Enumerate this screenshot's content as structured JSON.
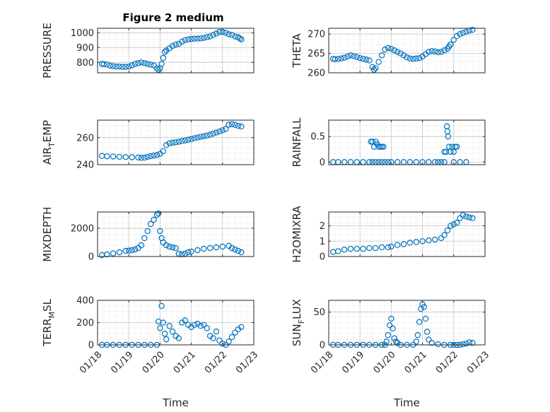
{
  "figure": {
    "title": "Figure 2 medium",
    "marker_color": "#0072BD",
    "date_ticks": [
      "01/18",
      "01/19",
      "01/20",
      "01/21",
      "01/22",
      "01/23"
    ]
  },
  "chart_data": [
    {
      "type": "scatter",
      "ylabel": "PRESSURE",
      "ylim": [
        730,
        1030
      ],
      "yticks": [
        "800",
        "900",
        "1000"
      ],
      "ytick_values": [
        800,
        900,
        1000
      ],
      "xlim": [
        "01/18",
        "01/23"
      ],
      "x": [
        0.14,
        0.2,
        0.3,
        0.4,
        0.5,
        0.6,
        0.7,
        0.8,
        0.9,
        1.0,
        1.1,
        1.2,
        1.3,
        1.4,
        1.5,
        1.6,
        1.7,
        1.8,
        1.9,
        1.95,
        2.0,
        2.05,
        2.1,
        2.15,
        2.2,
        2.3,
        2.4,
        2.5,
        2.6,
        2.7,
        2.8,
        2.9,
        3.0,
        3.1,
        3.2,
        3.3,
        3.4,
        3.5,
        3.6,
        3.7,
        3.8,
        3.9,
        4.0,
        4.1,
        4.2,
        4.3,
        4.4,
        4.5,
        4.55,
        4.6
      ],
      "y": [
        790,
        788,
        785,
        778,
        775,
        772,
        772,
        770,
        770,
        772,
        780,
        790,
        795,
        800,
        795,
        790,
        785,
        780,
        760,
        750,
        760,
        790,
        830,
        870,
        880,
        895,
        910,
        920,
        925,
        940,
        950,
        955,
        958,
        960,
        960,
        962,
        965,
        970,
        975,
        985,
        995,
        1005,
        1005,
        1000,
        990,
        985,
        975,
        970,
        962,
        955
      ]
    },
    {
      "type": "scatter",
      "ylabel": "THETA",
      "ylim": [
        260,
        271.5
      ],
      "yticks": [
        "260",
        "265",
        "270"
      ],
      "ytick_values": [
        260,
        265,
        270
      ],
      "xlim": [
        "01/18",
        "01/23"
      ],
      "x": [
        0.14,
        0.2,
        0.3,
        0.4,
        0.5,
        0.6,
        0.7,
        0.8,
        0.9,
        1.0,
        1.1,
        1.2,
        1.3,
        1.4,
        1.45,
        1.5,
        1.6,
        1.7,
        1.8,
        1.9,
        2.0,
        2.1,
        2.2,
        2.3,
        2.4,
        2.5,
        2.6,
        2.7,
        2.8,
        2.9,
        3.0,
        3.1,
        3.2,
        3.3,
        3.4,
        3.5,
        3.6,
        3.7,
        3.8,
        3.85,
        3.9,
        4.0,
        4.1,
        4.2,
        4.3,
        4.4,
        4.5,
        4.6
      ],
      "y": [
        263.6,
        263.5,
        263.6,
        263.7,
        263.9,
        264.2,
        264.5,
        264.3,
        264.1,
        263.8,
        263.6,
        263.4,
        263.2,
        261.5,
        260.8,
        261.2,
        262.8,
        264.5,
        266,
        266.4,
        266.2,
        265.8,
        265.4,
        265.0,
        264.5,
        264.0,
        263.7,
        263.6,
        263.7,
        263.8,
        264.2,
        264.8,
        265.4,
        265.6,
        265.5,
        265.3,
        265.4,
        265.8,
        266.2,
        266.8,
        267.3,
        268.5,
        269.5,
        270.0,
        270.3,
        270.6,
        270.9,
        271.1
      ]
    },
    {
      "type": "scatter",
      "ylabel": "AIR",
      "ylabel_sub": "T",
      "ylabel_suffix": "EMP",
      "ylim": [
        240,
        273
      ],
      "yticks": [
        "240",
        "260"
      ],
      "ytick_values": [
        240,
        260
      ],
      "xlim": [
        "01/18",
        "01/23"
      ],
      "x": [
        0.14,
        0.3,
        0.5,
        0.7,
        0.9,
        1.1,
        1.3,
        1.4,
        1.5,
        1.6,
        1.7,
        1.8,
        1.9,
        2.0,
        2.1,
        2.2,
        2.3,
        2.4,
        2.5,
        2.6,
        2.7,
        2.8,
        2.9,
        3.0,
        3.1,
        3.2,
        3.3,
        3.4,
        3.5,
        3.6,
        3.7,
        3.8,
        3.9,
        4.0,
        4.1,
        4.2,
        4.3,
        4.4,
        4.5,
        4.6
      ],
      "y": [
        246.5,
        246.2,
        246.0,
        245.8,
        245.6,
        245.5,
        245.3,
        245.0,
        245.2,
        245.8,
        246.3,
        246.8,
        247.2,
        248.0,
        250.0,
        254.5,
        255.8,
        256.3,
        256.6,
        257.0,
        257.5,
        258.0,
        258.5,
        259.0,
        259.6,
        260.1,
        260.6,
        261.1,
        261.6,
        262.2,
        263.0,
        263.8,
        264.6,
        265.5,
        266.4,
        269.6,
        270.0,
        269.5,
        268.8,
        268.3
      ]
    },
    {
      "type": "scatter",
      "ylabel": "RAINFALL",
      "ylim": [
        -0.05,
        0.82
      ],
      "yticks": [
        "0",
        "0.5"
      ],
      "ytick_values": [
        0,
        0.5
      ],
      "xlim": [
        "01/18",
        "01/23"
      ],
      "x": [
        0.14,
        0.3,
        0.5,
        0.7,
        0.9,
        1.1,
        1.3,
        1.4,
        1.5,
        1.6,
        1.7,
        1.8,
        1.9,
        2.0,
        2.2,
        2.4,
        2.6,
        2.8,
        3.0,
        3.2,
        3.4,
        3.5,
        3.6,
        3.7,
        4.0,
        4.2,
        4.4,
        1.35,
        1.4,
        1.45,
        1.5,
        1.55,
        1.6,
        1.65,
        1.7,
        1.75,
        3.7,
        3.75,
        3.78,
        3.8,
        3.82,
        3.85,
        3.9,
        3.95,
        4.0,
        4.05,
        4.1
      ],
      "y": [
        0,
        0,
        0,
        0,
        0,
        0,
        0,
        0,
        0,
        0,
        0,
        0,
        0,
        0,
        0,
        0,
        0,
        0,
        0,
        0,
        0,
        0,
        0,
        0,
        0,
        0,
        0,
        0.4,
        0.4,
        0.3,
        0.4,
        0.35,
        0.3,
        0.3,
        0.3,
        0.3,
        0.2,
        0.2,
        0.7,
        0.6,
        0.5,
        0.3,
        0.2,
        0.3,
        0.2,
        0.3,
        0.3
      ]
    },
    {
      "type": "scatter",
      "ylabel": "MIXDEPTH",
      "ylim": [
        0,
        3150
      ],
      "yticks": [
        "0",
        "2000"
      ],
      "ytick_values": [
        0,
        2000
      ],
      "xlim": [
        "01/18",
        "01/23"
      ],
      "x": [
        0.14,
        0.3,
        0.5,
        0.7,
        0.9,
        1.0,
        1.1,
        1.2,
        1.3,
        1.4,
        1.5,
        1.6,
        1.7,
        1.8,
        1.9,
        1.95,
        2.0,
        2.05,
        2.1,
        2.2,
        2.3,
        2.4,
        2.5,
        2.6,
        2.7,
        2.8,
        2.9,
        3.0,
        3.2,
        3.4,
        3.6,
        3.8,
        4.0,
        4.2,
        4.3,
        4.4,
        4.5,
        4.6
      ],
      "y": [
        100,
        150,
        220,
        300,
        400,
        420,
        450,
        500,
        600,
        800,
        1300,
        1800,
        2300,
        2600,
        2950,
        3050,
        1800,
        1300,
        1000,
        800,
        700,
        650,
        600,
        200,
        150,
        200,
        300,
        350,
        450,
        550,
        600,
        650,
        700,
        750,
        600,
        500,
        400,
        300
      ]
    },
    {
      "type": "scatter",
      "ylabel": "H2OMIXRA",
      "ylim": [
        0,
        2.9
      ],
      "yticks": [
        "0",
        "1",
        "2"
      ],
      "ytick_values": [
        0,
        1,
        2
      ],
      "xlim": [
        "01/18",
        "01/23"
      ],
      "x": [
        0.14,
        0.3,
        0.5,
        0.7,
        0.9,
        1.1,
        1.3,
        1.5,
        1.7,
        1.9,
        2.0,
        2.2,
        2.4,
        2.6,
        2.8,
        3.0,
        3.2,
        3.4,
        3.6,
        3.7,
        3.8,
        3.9,
        4.0,
        4.1,
        4.2,
        4.3,
        4.4,
        4.5,
        4.6
      ],
      "y": [
        0.3,
        0.35,
        0.45,
        0.5,
        0.5,
        0.5,
        0.55,
        0.55,
        0.6,
        0.6,
        0.65,
        0.75,
        0.8,
        0.9,
        0.95,
        1.0,
        1.05,
        1.1,
        1.2,
        1.4,
        1.7,
        2.0,
        2.1,
        2.2,
        2.5,
        2.7,
        2.6,
        2.55,
        2.5
      ]
    },
    {
      "type": "scatter",
      "ylabel": "TERR",
      "ylabel_sub": "M",
      "ylabel_suffix": "SL",
      "ylim": [
        0,
        400
      ],
      "yticks": [
        "0",
        "200",
        "400"
      ],
      "ytick_values": [
        0,
        200,
        400
      ],
      "xlim": [
        "01/18",
        "01/23"
      ],
      "x": [
        0.14,
        0.3,
        0.5,
        0.7,
        0.9,
        1.1,
        1.3,
        1.5,
        1.7,
        1.9,
        1.95,
        2.0,
        2.05,
        2.1,
        2.15,
        2.2,
        2.3,
        2.4,
        2.5,
        2.6,
        2.7,
        2.8,
        2.9,
        3.0,
        3.1,
        3.2,
        3.3,
        3.4,
        3.5,
        3.6,
        3.7,
        3.8,
        3.9,
        4.0,
        4.1,
        4.2,
        4.3,
        4.4,
        4.5,
        4.6
      ],
      "y": [
        0,
        0,
        0,
        0,
        0,
        0,
        0,
        0,
        0,
        0,
        210,
        150,
        350,
        200,
        100,
        50,
        170,
        120,
        80,
        60,
        200,
        220,
        180,
        160,
        180,
        190,
        170,
        180,
        150,
        80,
        60,
        120,
        40,
        10,
        0,
        30,
        70,
        110,
        140,
        160
      ]
    },
    {
      "type": "scatter",
      "ylabel": "SUN",
      "ylabel_sub": "F",
      "ylabel_suffix": "LUX",
      "ylim": [
        0,
        68
      ],
      "yticks": [
        "0",
        "50"
      ],
      "ytick_values": [
        0,
        50
      ],
      "xlim": [
        "01/18",
        "01/23"
      ],
      "x": [
        0.14,
        0.3,
        0.5,
        0.7,
        0.9,
        1.1,
        1.3,
        1.5,
        1.7,
        1.8,
        1.85,
        1.9,
        1.95,
        2.0,
        2.05,
        2.1,
        2.15,
        2.2,
        2.3,
        2.5,
        2.7,
        2.8,
        2.85,
        2.9,
        2.95,
        3.0,
        3.05,
        3.1,
        3.15,
        3.2,
        3.3,
        3.5,
        3.7,
        3.9,
        4.0,
        4.1,
        4.2,
        4.3,
        4.4,
        4.5,
        4.6
      ],
      "y": [
        0,
        0,
        0,
        0,
        0,
        0,
        0,
        0,
        0,
        0,
        5,
        15,
        30,
        40,
        25,
        10,
        5,
        3,
        0,
        0,
        0,
        5,
        15,
        35,
        55,
        62,
        58,
        40,
        20,
        8,
        3,
        1,
        0,
        0,
        0,
        0,
        0,
        1,
        2,
        4,
        3
      ]
    }
  ]
}
